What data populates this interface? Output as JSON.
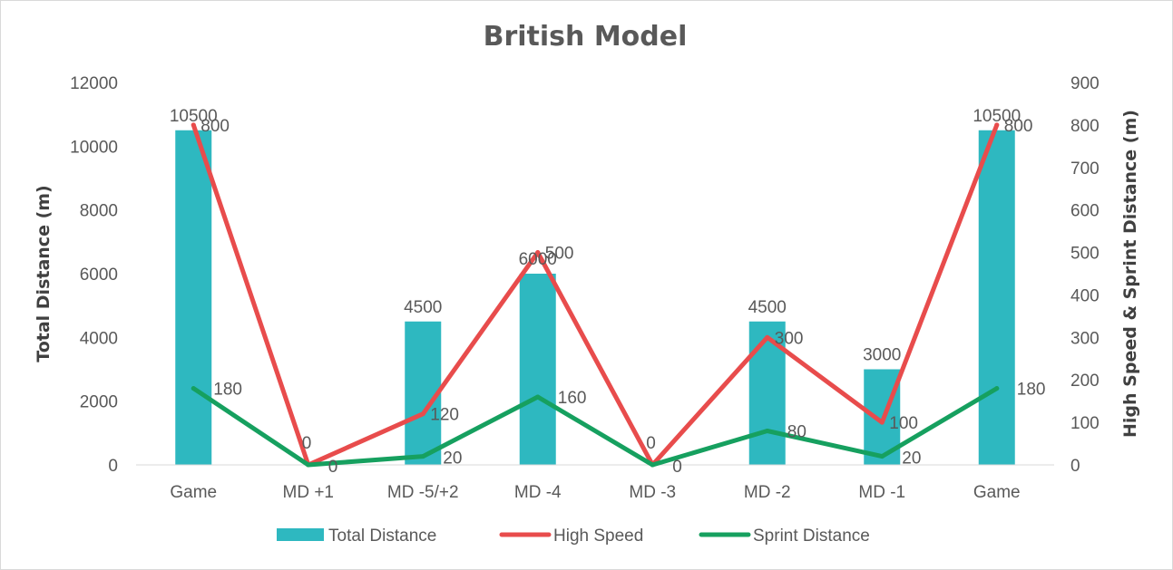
{
  "chart_data": {
    "type": "bar",
    "title": "British Model",
    "categories": [
      "Game",
      "MD +1",
      "MD -5/+2",
      "MD -4",
      "MD -3",
      "MD -2",
      "MD -1",
      "Game"
    ],
    "ylabel": "Total Distance  (m)",
    "y2label": "High Speed & Sprint Distance (m)",
    "ylim": [
      0,
      12000
    ],
    "y2lim": [
      0,
      900
    ],
    "yticks": [
      0,
      2000,
      4000,
      6000,
      8000,
      10000,
      12000
    ],
    "y2ticks": [
      0,
      100,
      200,
      300,
      400,
      500,
      600,
      700,
      800,
      900
    ],
    "grid": false,
    "legend_position": "bottom",
    "series": [
      {
        "name": "Total Distance",
        "type": "bar",
        "axis": "left",
        "color": "#2EB8C0",
        "values": [
          10500,
          0,
          4500,
          6000,
          0,
          4500,
          3000,
          10500
        ]
      },
      {
        "name": "High Speed",
        "type": "line",
        "axis": "right",
        "color": "#E84C4C",
        "values": [
          800,
          0,
          120,
          500,
          0,
          300,
          100,
          800
        ]
      },
      {
        "name": "Sprint Distance",
        "type": "line",
        "axis": "right",
        "color": "#16A05F",
        "values": [
          180,
          0,
          20,
          160,
          0,
          80,
          20,
          180
        ]
      }
    ],
    "bar_labels": [
      "10500",
      "",
      "4500",
      "6000",
      "",
      "4500",
      "3000",
      "10500"
    ],
    "high_speed_labels": [
      "800",
      "0",
      "120",
      "500",
      "0",
      "300",
      "100",
      "800"
    ],
    "sprint_labels": [
      "180",
      "0",
      "20",
      "160",
      "0",
      "80",
      "20",
      "180"
    ]
  }
}
